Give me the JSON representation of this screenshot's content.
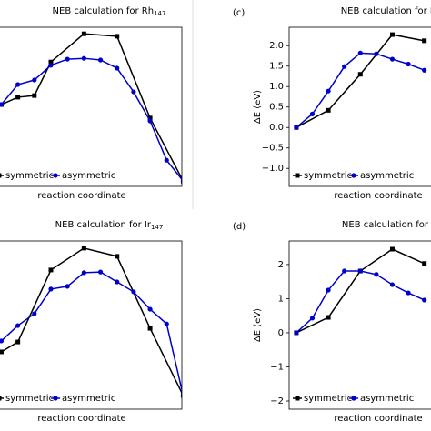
{
  "chart_data": [
    {
      "type": "line",
      "title": "NEB calculation for Rh",
      "title_sub": "147",
      "xlabel": "reaction coordinate",
      "xlim": [
        -0.63,
        10.92
      ],
      "ylim": [
        -1.44,
        2.45
      ],
      "legend": "lower left",
      "series": [
        {
          "name": "symmetric",
          "color": "#000000",
          "marker": "square",
          "x": [
            0,
            1,
            2,
            3,
            5,
            7,
            9,
            11
          ],
          "values": [
            0.56,
            0.74,
            0.78,
            1.6,
            2.29,
            2.23,
            0.23,
            -1.31
          ]
        },
        {
          "name": "asymmetric",
          "color": "#0000cc",
          "marker": "circle",
          "x": [
            0,
            1,
            2,
            3,
            4,
            5,
            6,
            7,
            8,
            9,
            10,
            11
          ],
          "values": [
            0.56,
            1.05,
            1.16,
            1.52,
            1.67,
            1.69,
            1.65,
            1.45,
            0.87,
            0.16,
            -0.8,
            -1.31
          ]
        }
      ]
    },
    {
      "type": "line",
      "panel_label": "(c)",
      "title": "NEB calculation for Pd",
      "xlabel": "reaction coordinate",
      "ylabel": "ΔE (eV)",
      "xlim": [
        -0.45,
        11.6
      ],
      "ylim": [
        -1.44,
        2.45
      ],
      "legend": "lower left",
      "yticks": [
        {
          "value": -1.0,
          "label": "−1.0"
        },
        {
          "value": -0.5,
          "label": "−0.5"
        },
        {
          "value": 0.0,
          "label": "0.0"
        },
        {
          "value": 0.5,
          "label": "0.5"
        },
        {
          "value": 1.0,
          "label": "1.0"
        },
        {
          "value": 1.5,
          "label": "1.5"
        },
        {
          "value": 2.0,
          "label": "2.0"
        }
      ],
      "series": [
        {
          "name": "symmetric",
          "color": "#000000",
          "marker": "square",
          "x": [
            0,
            2,
            4,
            6,
            8
          ],
          "values": [
            0,
            0.42,
            1.3,
            2.27,
            2.12
          ]
        },
        {
          "name": "asymmetric",
          "color": "#0000cc",
          "marker": "circle",
          "x": [
            0,
            1,
            2,
            3,
            4,
            5,
            6,
            7,
            8
          ],
          "values": [
            0,
            0.33,
            0.89,
            1.49,
            1.82,
            1.8,
            1.67,
            1.55,
            1.4
          ]
        }
      ]
    },
    {
      "type": "line",
      "title": "NEB calculation for Ir",
      "title_sub": "147",
      "xlabel": "reaction coordinate",
      "xlim": [
        -0.63,
        10.92
      ],
      "ylim": [
        -2.24,
        2.69
      ],
      "legend": "lower left",
      "series": [
        {
          "name": "symmetric",
          "color": "#000000",
          "marker": "square",
          "x": [
            0,
            1,
            3,
            5,
            7,
            9,
            11
          ],
          "values": [
            -0.56,
            -0.27,
            1.84,
            2.48,
            2.24,
            0.13,
            -1.84
          ]
        },
        {
          "name": "asymmetric",
          "color": "#0000cc",
          "marker": "circle",
          "x": [
            0,
            1,
            2,
            3,
            4,
            5,
            6,
            7,
            8,
            9,
            10,
            11
          ],
          "values": [
            -0.24,
            0.21,
            0.56,
            1.28,
            1.36,
            1.76,
            1.78,
            1.49,
            1.2,
            0.69,
            0.26,
            -1.84
          ]
        }
      ]
    },
    {
      "type": "line",
      "panel_label": "(d)",
      "title": "NEB calculation for Pt",
      "xlabel": "reaction coordinate",
      "ylabel": "ΔE (eV)",
      "xlim": [
        -0.45,
        11.6
      ],
      "ylim": [
        -2.24,
        2.69
      ],
      "legend": "lower left",
      "yticks": [
        {
          "value": -2,
          "label": "−2"
        },
        {
          "value": -1,
          "label": "−1"
        },
        0,
        1,
        2
      ],
      "series": [
        {
          "name": "symmetric",
          "color": "#000000",
          "marker": "square",
          "x": [
            0,
            2,
            4,
            6,
            8
          ],
          "values": [
            0,
            0.45,
            1.81,
            2.45,
            2.03
          ]
        },
        {
          "name": "asymmetric",
          "color": "#0000cc",
          "marker": "circle",
          "x": [
            0,
            1,
            2,
            3,
            4,
            5,
            6,
            7,
            8
          ],
          "values": [
            0,
            0.43,
            1.25,
            1.81,
            1.81,
            1.71,
            1.41,
            1.17,
            0.96
          ]
        }
      ]
    }
  ]
}
